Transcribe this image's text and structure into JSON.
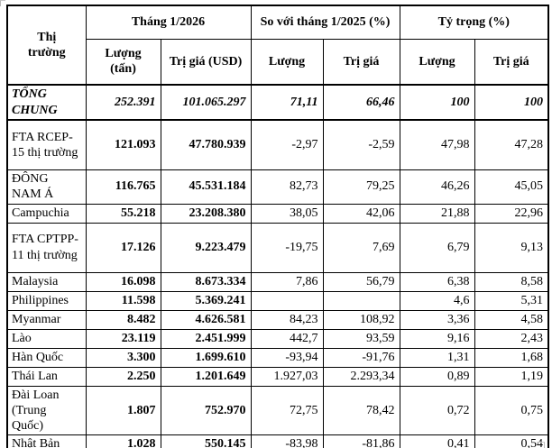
{
  "colors": {
    "text": "#000000",
    "border": "#000000",
    "background": "#ffffff"
  },
  "table": {
    "header": {
      "market": "Thị trường",
      "groups": [
        {
          "label": "Tháng 1/2026",
          "children": [
            "Lượng (tấn)",
            "Trị giá (USD)"
          ]
        },
        {
          "label": "So với tháng 1/2025 (%)",
          "children": [
            "Lượng",
            "Trị giá"
          ]
        },
        {
          "label": "Tỷ trọng (%)",
          "children": [
            "Lượng",
            "Trị giá"
          ]
        }
      ]
    },
    "rows": [
      {
        "name": "TỔNG CHUNG",
        "type": "total",
        "cells": [
          "252.391",
          "101.065.297",
          "71,11",
          "66,46",
          "100",
          "100"
        ]
      },
      {
        "name": "FTA RCEP-15 thị trường",
        "type": "normal",
        "cells": [
          "121.093",
          "47.780.939",
          "-2,97",
          "-2,59",
          "47,98",
          "47,28"
        ]
      },
      {
        "name": "ĐÔNG NAM Á",
        "type": "normal",
        "cells": [
          "116.765",
          "45.531.184",
          "82,73",
          "79,25",
          "46,26",
          "45,05"
        ]
      },
      {
        "name": "Campuchia",
        "type": "normal",
        "cells": [
          "55.218",
          "23.208.380",
          "38,05",
          "42,06",
          "21,88",
          "22,96"
        ]
      },
      {
        "name": "FTA CPTPP-11 thị trường",
        "type": "normal",
        "cells": [
          "17.126",
          "9.223.479",
          "-19,75",
          "7,69",
          "6,79",
          "9,13"
        ]
      },
      {
        "name": "Malaysia",
        "type": "normal",
        "cells": [
          "16.098",
          "8.673.334",
          "7,86",
          "56,79",
          "6,38",
          "8,58"
        ]
      },
      {
        "name": "Philippines",
        "type": "normal",
        "cells": [
          "11.598",
          "5.369.241",
          "",
          "",
          "4,6",
          "5,31"
        ]
      },
      {
        "name": "Myanmar",
        "type": "normal",
        "cells": [
          "8.482",
          "4.626.581",
          "84,23",
          "108,92",
          "3,36",
          "4,58"
        ]
      },
      {
        "name": "Lào",
        "type": "normal",
        "cells": [
          "23.119",
          "2.451.999",
          "442,7",
          "93,59",
          "9,16",
          "2,43"
        ]
      },
      {
        "name": "Hàn Quốc",
        "type": "normal",
        "cells": [
          "3.300",
          "1.699.610",
          "-93,94",
          "-91,76",
          "1,31",
          "1,68"
        ]
      },
      {
        "name": "Thái Lan",
        "type": "normal",
        "cells": [
          "2.250",
          "1.201.649",
          "1.927,03",
          "2.293,34",
          "0,89",
          "1,19"
        ]
      },
      {
        "name": "Đài Loan (Trung Quốc)",
        "type": "normal",
        "cells": [
          "1.807",
          "752.970",
          "72,75",
          "78,42",
          "0,72",
          "0,75"
        ]
      },
      {
        "name": "Nhật Bản",
        "type": "normal",
        "cells": [
          "1.028",
          "550.145",
          "-83,98",
          "-81,86",
          "0,41",
          "0,54"
        ]
      }
    ]
  }
}
